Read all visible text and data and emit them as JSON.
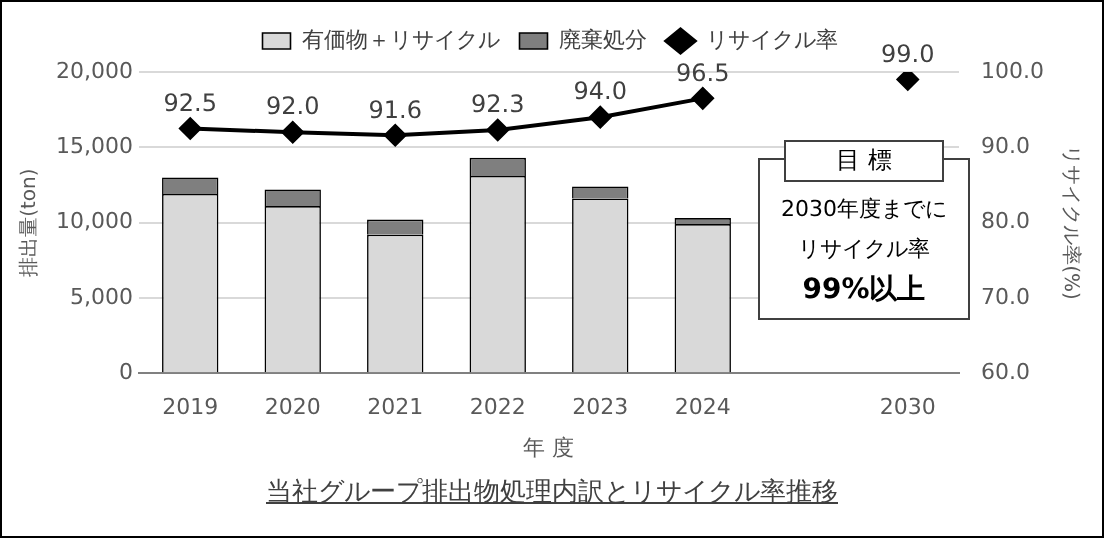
{
  "chart_data": {
    "type": "bar",
    "title": "当社グループ排出物処理内訳とリサイクル率推移",
    "xlabel": "年 度",
    "ylabel": "排出量(ton)",
    "y2label": "リサイクル率(%)",
    "categories": [
      "2019",
      "2020",
      "2021",
      "2022",
      "2023",
      "2024",
      null,
      "2030"
    ],
    "series": [
      {
        "name": "有価物＋リサイクル",
        "color": "#d9d9d9",
        "values": [
          11900,
          11100,
          9200,
          13100,
          11600,
          9900,
          null,
          null
        ]
      },
      {
        "name": "廃棄処分",
        "color": "#7f7f7f",
        "values": [
          1100,
          1100,
          1000,
          1200,
          800,
          400,
          null,
          null
        ]
      },
      {
        "name": "リサイクル率",
        "type": "line",
        "axis": "y2",
        "color": "#000000",
        "marker": "diamond",
        "values": [
          92.5,
          92.0,
          91.6,
          92.3,
          94.0,
          96.5,
          null,
          99.0
        ],
        "value_labels": [
          "92.5",
          "92.0",
          "91.6",
          "92.3",
          "94.0",
          "96.5",
          null,
          "99.0"
        ]
      }
    ],
    "stacked": true,
    "ylim": [
      0,
      20000
    ],
    "yticks": [
      0,
      {
        "value": 5000,
        "label": "5,000"
      },
      {
        "value": 10000,
        "label": "10,000"
      },
      {
        "value": 15000,
        "label": "15,000"
      },
      {
        "value": 20000,
        "label": "20,000"
      }
    ],
    "y2lim": [
      60,
      100
    ],
    "y2ticks": [
      {
        "value": 60,
        "label": "60.0"
      },
      {
        "value": 70,
        "label": "70.0"
      },
      {
        "value": 80,
        "label": "80.0"
      },
      {
        "value": 90,
        "label": "90.0"
      },
      {
        "value": 100,
        "label": "100.0"
      }
    ],
    "grid": "y",
    "legend": "top",
    "annotations": [
      "目 標",
      "2030年度までに",
      "リサイクル率",
      "99%以上"
    ]
  }
}
